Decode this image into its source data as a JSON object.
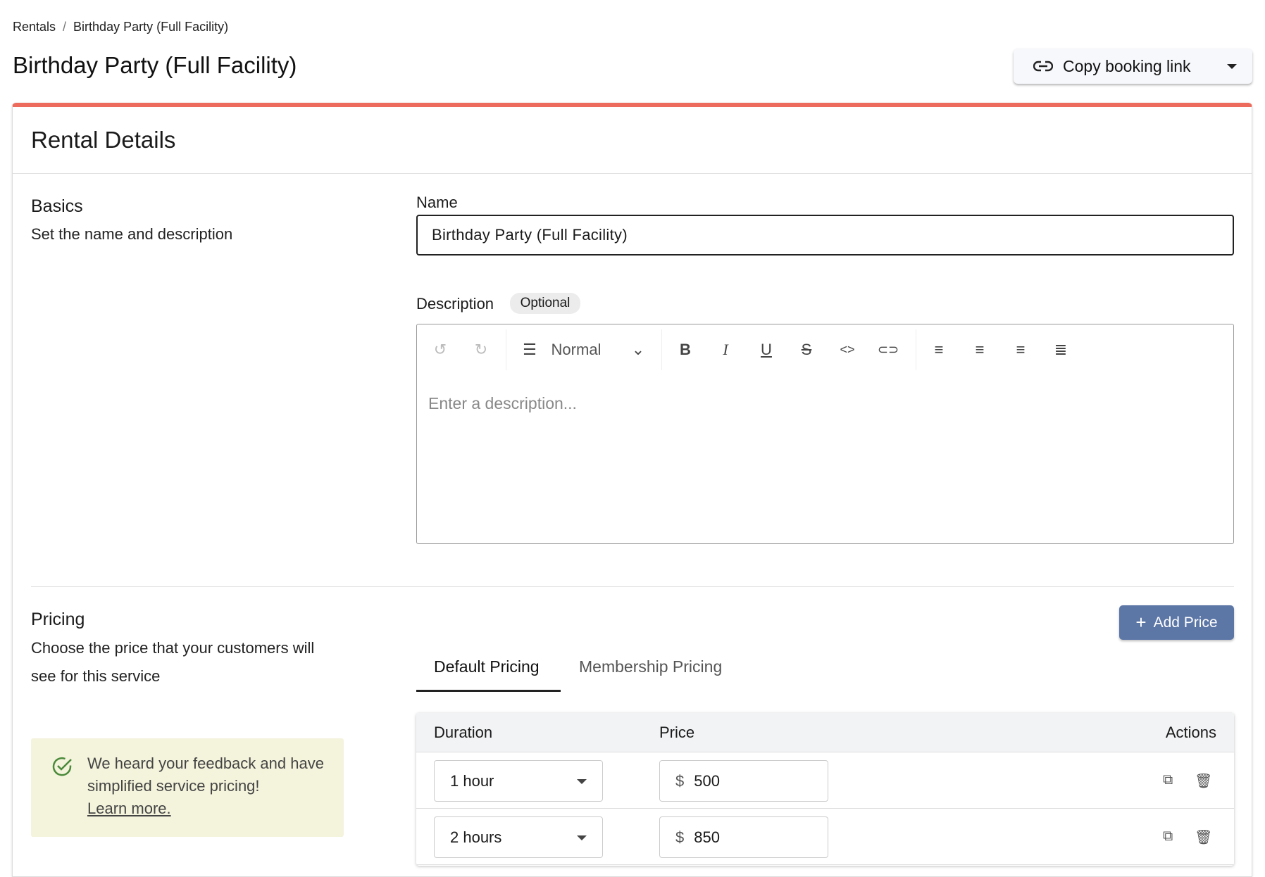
{
  "breadcrumb": {
    "parent": "Rentals",
    "current": "Birthday Party (Full Facility)"
  },
  "page_title": "Birthday Party (Full Facility)",
  "copy_button": {
    "label": "Copy booking link",
    "icon": "link-icon"
  },
  "card": {
    "title": "Rental Details",
    "accent": "#ec6b5c"
  },
  "basics": {
    "title": "Basics",
    "subtitle": "Set the name and description",
    "name_label": "Name",
    "name_value": "Birthday Party (Full Facility)",
    "description_label": "Description",
    "optional_badge": "Optional",
    "editor": {
      "block_format": "Normal",
      "placeholder": "Enter a description..."
    }
  },
  "pricing": {
    "title": "Pricing",
    "subtitle": "Choose the price that your customers will see for this service",
    "add_price": "Add Price",
    "add_price_color": "#5c76a6",
    "tabs": [
      {
        "label": "Default Pricing",
        "active": true
      },
      {
        "label": "Membership Pricing",
        "active": false
      }
    ],
    "columns": {
      "duration": "Duration",
      "price": "Price",
      "actions": "Actions"
    },
    "rows": [
      {
        "duration": "1 hour",
        "currency": "$",
        "price": "500"
      },
      {
        "duration": "2 hours",
        "currency": "$",
        "price": "850"
      }
    ],
    "feedback": {
      "text": "We heard your feedback and have simplified service pricing!",
      "link": "Learn more."
    }
  }
}
